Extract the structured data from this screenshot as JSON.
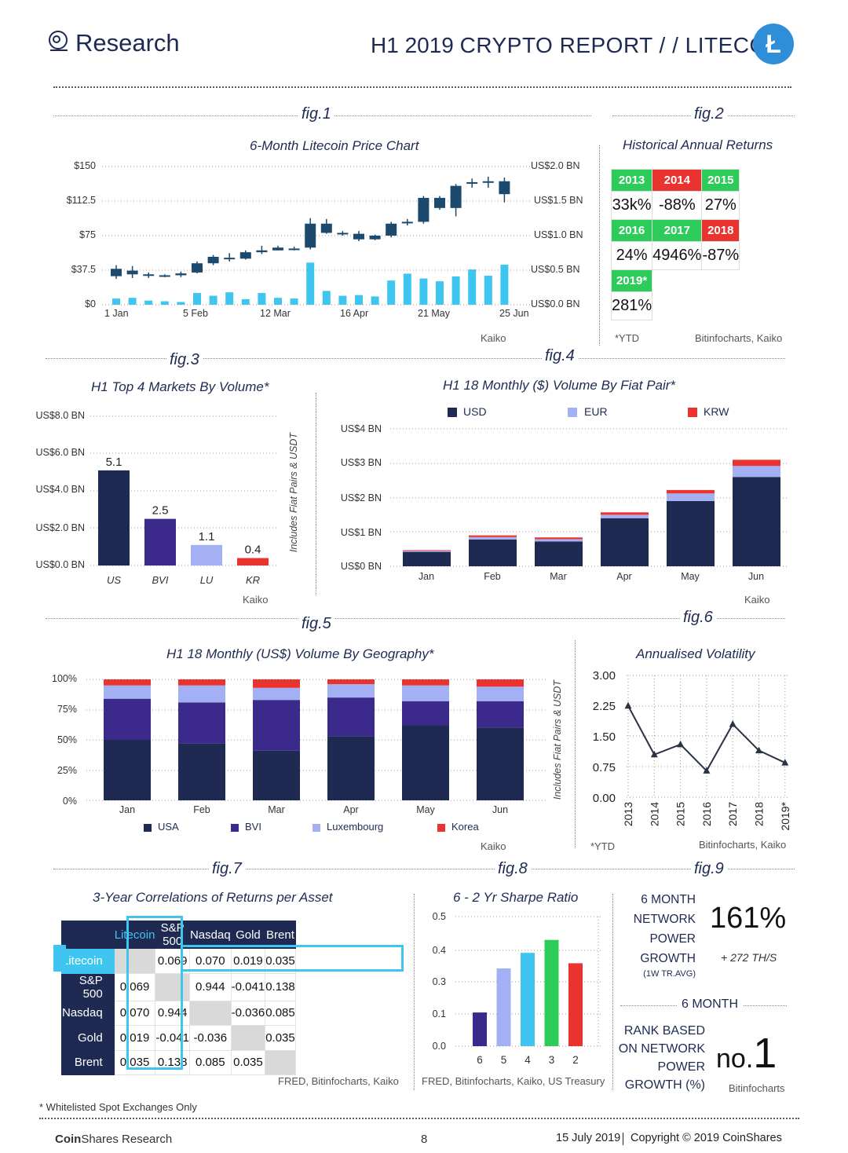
{
  "header": {
    "brand": "Research",
    "report_bold": "H1 2019",
    "report_rest": "CRYPTO REPORT / / LITECOIN",
    "coin_symbol": "Ł"
  },
  "fig_labels": [
    "fig.1",
    "fig.2",
    "fig.3",
    "fig.4",
    "fig.5",
    "fig.6",
    "fig.7",
    "fig.8",
    "fig.9"
  ],
  "fig1": {
    "title": "6-Month Litecoin Price Chart",
    "source": "Kaiko",
    "left_ticks": [
      "$150",
      "$112.5",
      "$75",
      "$37.5",
      "$0"
    ],
    "right_ticks": [
      "US$2.0 BN",
      "US$1.5 BN",
      "US$1.0 BN",
      "US$0.5 BN",
      "US$0.0 BN"
    ],
    "x_ticks": [
      "1 Jan",
      "5 Feb",
      "12 Mar",
      "16 Apr",
      "21 May",
      "25 Jun"
    ]
  },
  "fig2": {
    "title": "Historical Annual Returns",
    "footnote": "*YTD",
    "source": "Bitinfocharts, Kaiko",
    "cells": [
      {
        "year": "2013",
        "value": "33k%",
        "color": "#2dcc5a"
      },
      {
        "year": "2014",
        "value": "-88%",
        "color": "#e8332f"
      },
      {
        "year": "2015",
        "value": "27%",
        "color": "#2dcc5a"
      },
      {
        "year": "2016",
        "value": "24%",
        "color": "#2dcc5a"
      },
      {
        "year": "2017",
        "value": "4946%",
        "color": "#2dcc5a"
      },
      {
        "year": "2018",
        "value": "-87%",
        "color": "#e8332f"
      },
      {
        "year": "2019*",
        "value": "281%",
        "color": "#2dcc5a"
      }
    ]
  },
  "fig3": {
    "title": "H1 Top 4 Markets By Volume*",
    "source": "Kaiko",
    "side_note": "Includes Fiat Pairs & USDT",
    "y_ticks": [
      "US$8.0 BN",
      "US$6.0 BN",
      "US$4.0 BN",
      "US$2.0 BN",
      "US$0.0 BN"
    ]
  },
  "fig4": {
    "title": "H1 18 Monthly ($) Volume By Fiat Pair*",
    "source": "Kaiko",
    "y_ticks": [
      "US$4 BN",
      "US$3 BN",
      "US$2 BN",
      "US$1 BN",
      "US$0 BN"
    ]
  },
  "fig5": {
    "title": "H1 18 Monthly (US$) Volume By Geography*",
    "source": "Kaiko",
    "side_note": "Includes Fiat Pairs & USDT",
    "y_ticks": [
      "100%",
      "75%",
      "50%",
      "25%",
      "0%"
    ]
  },
  "fig6": {
    "title": "Annualised Volatility",
    "footnote": "*YTD",
    "source": "Bitinfocharts, Kaiko",
    "y_ticks": [
      "3.00",
      "2.25",
      "1.50",
      "0.75",
      "0.00"
    ]
  },
  "fig7": {
    "title": "3-Year Correlations of Returns per Asset",
    "source": "FRED, Bitinfocharts, Kaiko",
    "columns": [
      "Litecoin",
      "S&P 500",
      "Nasdaq",
      "Gold",
      "Brent"
    ],
    "rows": [
      {
        "label": "Litecoin",
        "values": [
          "",
          "0.069",
          "0.070",
          "0.019",
          "0.035"
        ]
      },
      {
        "label": "S&P 500",
        "values": [
          "0.069",
          "",
          "0.944",
          "-0.041",
          "0.138"
        ]
      },
      {
        "label": "Nasdaq",
        "values": [
          "0.070",
          "0.944",
          "",
          "-0.036",
          "0.085"
        ]
      },
      {
        "label": "Gold",
        "values": [
          "0.019",
          "-0.041",
          "-0.036",
          "",
          "0.035"
        ]
      },
      {
        "label": "Brent",
        "values": [
          "0.035",
          "0.138",
          "0.085",
          "0.035",
          ""
        ]
      }
    ]
  },
  "fig8": {
    "title": "6 - 2 Yr Sharpe Ratio",
    "source": "FRED, Bitinfocharts, Kaiko, US Treasury",
    "y_ticks": [
      "0.5",
      "0.4",
      "0.3",
      "0.1",
      "0.0"
    ]
  },
  "fig9": {
    "network_label_lines": [
      "6 MONTH",
      "NETWORK",
      "POWER",
      "GROWTH",
      "(1W TR.AVG)"
    ],
    "network_value": "161%",
    "network_sub": "+ 272 TH/S",
    "rank_header": "6 MONTH",
    "rank_label_lines": [
      "RANK BASED",
      "ON NETWORK",
      "POWER",
      "GROWTH (%)"
    ],
    "rank_prefix": "no.",
    "rank_value": "1",
    "source": "Bitinfocharts"
  },
  "footer": {
    "note": "* Whitelisted Spot Exchanges Only",
    "brand_bold": "Coin",
    "brand_rest": "Shares Research",
    "page": "8",
    "date": "15 July 2019",
    "copyright": "Copyright © 2019 CoinShares"
  },
  "chart_data": [
    {
      "type": "candlestick",
      "title": "6-Month Litecoin Price Chart",
      "x_ticks": [
        "1 Jan",
        "5 Feb",
        "12 Mar",
        "16 Apr",
        "21 May",
        "25 Jun"
      ],
      "ylim_price": [
        0,
        150
      ],
      "ylim_volume_bn": [
        0,
        2.0
      ],
      "candles": [
        {
          "o": 31,
          "c": 39,
          "h": 43,
          "l": 28
        },
        {
          "o": 37,
          "c": 33,
          "h": 42,
          "l": 29
        },
        {
          "o": 33,
          "c": 32,
          "h": 35,
          "l": 29
        },
        {
          "o": 32,
          "c": 32,
          "h": 33,
          "l": 30
        },
        {
          "o": 32,
          "c": 34,
          "h": 36,
          "l": 30
        },
        {
          "o": 35,
          "c": 45,
          "h": 47,
          "l": 34
        },
        {
          "o": 45,
          "c": 52,
          "h": 54,
          "l": 43
        },
        {
          "o": 51,
          "c": 50,
          "h": 56,
          "l": 47
        },
        {
          "o": 50,
          "c": 57,
          "h": 59,
          "l": 49
        },
        {
          "o": 57,
          "c": 59,
          "h": 64,
          "l": 55
        },
        {
          "o": 59,
          "c": 62,
          "h": 64,
          "l": 59
        },
        {
          "o": 61,
          "c": 61,
          "h": 63,
          "l": 59
        },
        {
          "o": 62,
          "c": 88,
          "h": 94,
          "l": 60
        },
        {
          "o": 88,
          "c": 78,
          "h": 93,
          "l": 77
        },
        {
          "o": 78,
          "c": 77,
          "h": 80,
          "l": 75
        },
        {
          "o": 77,
          "c": 71,
          "h": 80,
          "l": 69
        },
        {
          "o": 71,
          "c": 75,
          "h": 76,
          "l": 70
        },
        {
          "o": 75,
          "c": 88,
          "h": 90,
          "l": 73
        },
        {
          "o": 90,
          "c": 89,
          "h": 93,
          "l": 86
        },
        {
          "o": 90,
          "c": 116,
          "h": 118,
          "l": 88
        },
        {
          "o": 116,
          "c": 105,
          "h": 118,
          "l": 103
        },
        {
          "o": 105,
          "c": 129,
          "h": 131,
          "l": 96
        },
        {
          "o": 133,
          "c": 132,
          "h": 137,
          "l": 127
        },
        {
          "o": 133,
          "c": 134,
          "h": 139,
          "l": 127
        },
        {
          "o": 134,
          "c": 120,
          "h": 138,
          "l": 111
        }
      ],
      "volume_bn": [
        0.09,
        0.1,
        0.06,
        0.05,
        0.04,
        0.17,
        0.13,
        0.18,
        0.08,
        0.17,
        0.1,
        0.09,
        0.61,
        0.2,
        0.13,
        0.14,
        0.12,
        0.35,
        0.45,
        0.38,
        0.34,
        0.41,
        0.51,
        0.42,
        0.58
      ]
    },
    {
      "type": "bar",
      "title": "H1 Top 4 Markets By Volume*",
      "categories": [
        "US",
        "BVI",
        "LU",
        "KR"
      ],
      "values": [
        5.1,
        2.5,
        1.1,
        0.4
      ],
      "colors": [
        "#1e2a52",
        "#3b2a8c",
        "#a4b0f4",
        "#e8332f"
      ],
      "ylim": [
        0,
        8
      ]
    },
    {
      "type": "bar",
      "stacked": true,
      "title": "H1 18 Monthly ($) Volume By Fiat Pair*",
      "categories": [
        "Jan",
        "Feb",
        "Mar",
        "Apr",
        "May",
        "Jun"
      ],
      "series": [
        {
          "name": "USD",
          "color": "#1e2a52",
          "values": [
            0.42,
            0.78,
            0.72,
            1.4,
            1.9,
            2.6
          ]
        },
        {
          "name": "EUR",
          "color": "#a4b0f4",
          "values": [
            0.03,
            0.07,
            0.07,
            0.1,
            0.22,
            0.32
          ]
        },
        {
          "name": "KRW",
          "color": "#e8332f",
          "values": [
            0.02,
            0.05,
            0.05,
            0.07,
            0.1,
            0.18
          ]
        }
      ],
      "ylim": [
        0,
        4
      ]
    },
    {
      "type": "bar",
      "stacked": true,
      "title": "H1 18 Monthly (US$) Volume By Geography*",
      "categories": [
        "Jan",
        "Feb",
        "Mar",
        "Apr",
        "May",
        "Jun"
      ],
      "series": [
        {
          "name": "USA",
          "color": "#1e2a52",
          "values": [
            50,
            47,
            41,
            53,
            62,
            60
          ]
        },
        {
          "name": "BVI",
          "color": "#3b2a8c",
          "values": [
            34,
            34,
            42,
            32,
            20,
            22
          ]
        },
        {
          "name": "Luxembourg",
          "color": "#a4b0f4",
          "values": [
            11,
            14,
            10,
            11,
            13,
            12
          ]
        },
        {
          "name": "Korea",
          "color": "#e8332f",
          "values": [
            5,
            5,
            7,
            4,
            5,
            6
          ]
        }
      ],
      "ylim": [
        0,
        100
      ]
    },
    {
      "type": "line",
      "title": "Annualised Volatility",
      "categories": [
        "2013",
        "2014",
        "2015",
        "2016",
        "2017",
        "2018",
        "2019*"
      ],
      "values": [
        2.25,
        1.05,
        1.3,
        0.65,
        1.8,
        1.15,
        0.85
      ],
      "ylim": [
        0,
        3
      ]
    },
    {
      "type": "bar",
      "title": "6 - 2 Yr Sharpe Ratio",
      "categories": [
        "6",
        "5",
        "4",
        "3",
        "2"
      ],
      "values": [
        0.13,
        0.3,
        0.36,
        0.41,
        0.32
      ],
      "colors": [
        "#3b2a8c",
        "#a4b0f4",
        "#3ec6f0",
        "#2dcc5a",
        "#e8332f"
      ],
      "ylim": [
        0,
        0.5
      ]
    }
  ]
}
